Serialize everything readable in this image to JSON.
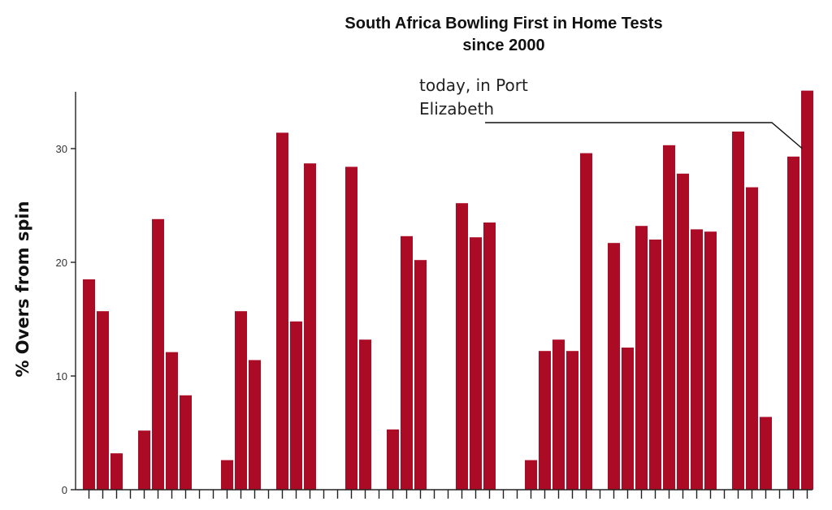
{
  "colors": {
    "bar": "#ac0b26",
    "axis": "#222222",
    "text": "#111111"
  },
  "chart_data": {
    "type": "bar",
    "title": [
      "South Africa Bowling First in Home Tests",
      "since 2000"
    ],
    "xlabel": "",
    "ylabel": "% Overs from spin",
    "ylim": [
      0,
      35
    ],
    "yticks": [
      0,
      10,
      20,
      30
    ],
    "grid": false,
    "annotation": {
      "text": [
        "today, in Port",
        "Elizabeth"
      ],
      "target_index": 52
    },
    "values": [
      18.5,
      15.7,
      3.2,
      null,
      5.2,
      23.8,
      12.1,
      8.3,
      null,
      null,
      2.6,
      15.7,
      11.4,
      null,
      31.4,
      14.8,
      28.7,
      null,
      null,
      28.4,
      13.2,
      null,
      5.3,
      22.3,
      20.2,
      null,
      null,
      25.2,
      22.2,
      23.5,
      null,
      null,
      2.6,
      12.2,
      13.2,
      12.2,
      29.6,
      null,
      21.7,
      12.5,
      23.2,
      22.0,
      30.3,
      27.8,
      22.9,
      22.7,
      null,
      31.5,
      26.6,
      6.4,
      null,
      29.3,
      35.1
    ]
  }
}
